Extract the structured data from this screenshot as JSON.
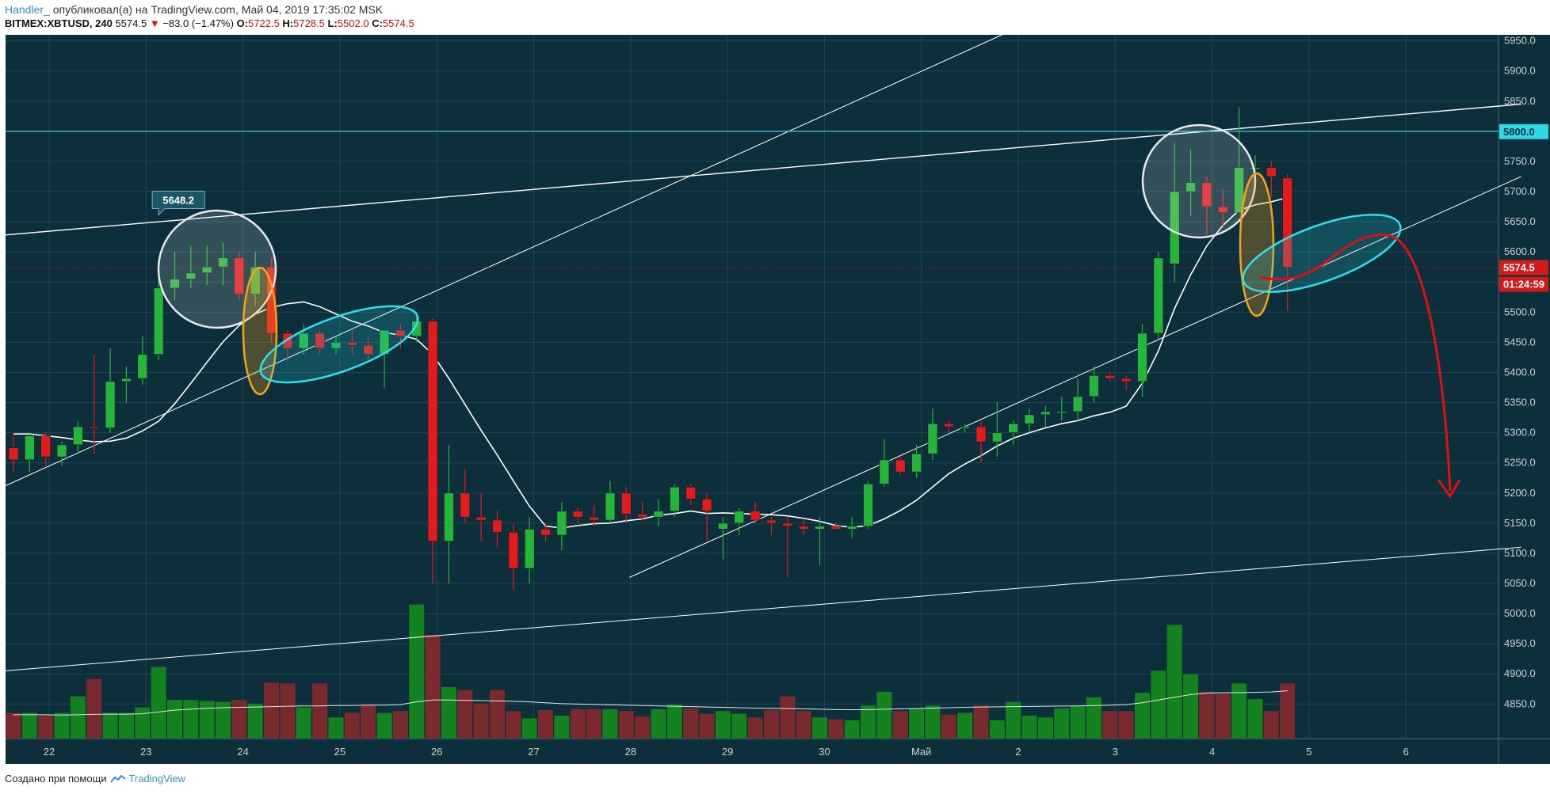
{
  "header": {
    "author": "Handler_",
    "published": "опубликовал(а) на TradingView.com, Май 04, 2019 17:35:02 MSK",
    "symbol": "BITMEX:XBTUSD, 240",
    "last": "5574.5",
    "change_arrow": "▼",
    "change": "−83.0 (−1.47%)",
    "o_label": "O:",
    "o_val": "5722.5",
    "h_label": "H:",
    "h_val": "5728.5",
    "l_label": "L:",
    "l_val": "5502.0",
    "c_label": "C:",
    "c_val": "5574.5"
  },
  "footer": {
    "created_with": "Создано при помощи",
    "brand": "TradingView",
    "brand_icon": "tradingview-logo-icon"
  },
  "colors": {
    "background": "#0d2f3b",
    "grid": "#1f4753",
    "up": "#27b43a",
    "down": "#e21c1c",
    "vol_up": "#13821f",
    "vol_down": "#7a2a2f",
    "ma": "#ffffff",
    "cyan": "#2ee0ee",
    "orange": "#f7a21b",
    "arrow": "#e01010",
    "resistance": "#3ad0d8"
  },
  "chart_data": {
    "type": "candlestick",
    "interval": "240",
    "y_axis": {
      "ticks": [
        "5950.0",
        "5900.0",
        "5850.0",
        "5800.0",
        "5750.0",
        "5700.0",
        "5650.0",
        "5600.0",
        "5550.0",
        "5500.0",
        "5450.0",
        "5400.0",
        "5350.0",
        "5300.0",
        "5250.0",
        "5200.0",
        "5150.0",
        "5100.0",
        "5050.0",
        "5000.0",
        "4950.0",
        "4900.0",
        "4850.0"
      ],
      "range": [
        4790,
        5960
      ]
    },
    "x_axis": {
      "ticks": [
        "22",
        "23",
        "24",
        "25",
        "26",
        "27",
        "28",
        "29",
        "30",
        "Май",
        "2",
        "3",
        "4",
        "5",
        "6"
      ]
    },
    "badges": {
      "resistance": {
        "label": "5800.0",
        "value": 5800
      },
      "last_price": {
        "label": "5574.5",
        "value": 5574.5
      },
      "countdown": "01:24:59",
      "high_callout": {
        "label": "5648.2",
        "value": 5648.2
      }
    },
    "candles": [
      [
        5275,
        5300,
        5235,
        5255
      ],
      [
        5255,
        5295,
        5235,
        5295
      ],
      [
        5295,
        5300,
        5245,
        5260
      ],
      [
        5260,
        5285,
        5245,
        5280
      ],
      [
        5280,
        5320,
        5265,
        5310
      ],
      [
        5310,
        5430,
        5265,
        5308
      ],
      [
        5308,
        5440,
        5300,
        5385
      ],
      [
        5385,
        5410,
        5350,
        5390
      ],
      [
        5390,
        5460,
        5380,
        5430
      ],
      [
        5430,
        5570,
        5420,
        5540
      ],
      [
        5540,
        5600,
        5520,
        5555
      ],
      [
        5555,
        5610,
        5540,
        5565
      ],
      [
        5565,
        5610,
        5545,
        5575
      ],
      [
        5575,
        5615,
        5545,
        5590
      ],
      [
        5590,
        5600,
        5520,
        5530
      ],
      [
        5530,
        5600,
        5510,
        5575
      ],
      [
        5575,
        5590,
        5450,
        5465
      ],
      [
        5465,
        5470,
        5420,
        5440
      ],
      [
        5440,
        5480,
        5430,
        5465
      ],
      [
        5465,
        5470,
        5430,
        5440
      ],
      [
        5440,
        5460,
        5430,
        5450
      ],
      [
        5450,
        5470,
        5430,
        5445
      ],
      [
        5445,
        5460,
        5420,
        5430
      ],
      [
        5430,
        5470,
        5375,
        5470
      ],
      [
        5470,
        5480,
        5440,
        5460
      ],
      [
        5460,
        5500,
        5450,
        5485
      ],
      [
        5485,
        5490,
        5050,
        5120
      ],
      [
        5120,
        5280,
        5050,
        5200
      ],
      [
        5200,
        5240,
        5150,
        5160
      ],
      [
        5160,
        5200,
        5120,
        5155
      ],
      [
        5155,
        5170,
        5110,
        5135
      ],
      [
        5135,
        5150,
        5040,
        5075
      ],
      [
        5075,
        5160,
        5050,
        5140
      ],
      [
        5140,
        5150,
        5120,
        5130
      ],
      [
        5130,
        5185,
        5105,
        5170
      ],
      [
        5170,
        5175,
        5150,
        5160
      ],
      [
        5160,
        5180,
        5145,
        5155
      ],
      [
        5155,
        5220,
        5150,
        5200
      ],
      [
        5200,
        5210,
        5150,
        5165
      ],
      [
        5165,
        5185,
        5155,
        5160
      ],
      [
        5160,
        5190,
        5145,
        5170
      ],
      [
        5170,
        5215,
        5160,
        5210
      ],
      [
        5210,
        5215,
        5180,
        5190
      ],
      [
        5190,
        5200,
        5120,
        5170
      ],
      [
        5140,
        5160,
        5090,
        5150
      ],
      [
        5150,
        5175,
        5130,
        5170
      ],
      [
        5170,
        5185,
        5150,
        5155
      ],
      [
        5155,
        5160,
        5130,
        5150
      ],
      [
        5150,
        5160,
        5060,
        5145
      ],
      [
        5145,
        5155,
        5130,
        5140
      ],
      [
        5140,
        5160,
        5080,
        5145
      ],
      [
        5145,
        5150,
        5140,
        5140
      ],
      [
        5140,
        5160,
        5125,
        5145
      ],
      [
        5145,
        5220,
        5140,
        5215
      ],
      [
        5215,
        5290,
        5210,
        5255
      ],
      [
        5255,
        5260,
        5230,
        5235
      ],
      [
        5235,
        5280,
        5225,
        5265
      ],
      [
        5265,
        5340,
        5255,
        5315
      ],
      [
        5315,
        5320,
        5300,
        5310
      ],
      [
        5310,
        5315,
        5300,
        5310
      ],
      [
        5310,
        5320,
        5250,
        5285
      ],
      [
        5285,
        5350,
        5260,
        5300
      ],
      [
        5300,
        5320,
        5280,
        5315
      ],
      [
        5315,
        5340,
        5300,
        5330
      ],
      [
        5330,
        5345,
        5310,
        5335
      ],
      [
        5335,
        5360,
        5320,
        5335
      ],
      [
        5335,
        5390,
        5320,
        5360
      ],
      [
        5360,
        5410,
        5350,
        5395
      ],
      [
        5395,
        5400,
        5385,
        5390
      ],
      [
        5390,
        5395,
        5370,
        5385
      ],
      [
        5385,
        5480,
        5360,
        5465
      ],
      [
        5465,
        5600,
        5455,
        5590
      ],
      [
        5580,
        5780,
        5550,
        5700
      ],
      [
        5700,
        5770,
        5660,
        5715
      ],
      [
        5715,
        5725,
        5625,
        5675
      ],
      [
        5675,
        5705,
        5640,
        5665
      ],
      [
        5665,
        5840,
        5665,
        5740
      ],
      [
        5740,
        5760,
        5700,
        5740
      ],
      [
        5740,
        5750,
        5690,
        5725
      ],
      [
        5722.5,
        5728.5,
        5502,
        5574.5
      ]
    ],
    "moving_average": [
      5298,
      5298,
      5295,
      5292,
      5288,
      5285,
      5286,
      5291,
      5303,
      5319,
      5348,
      5382,
      5417,
      5451,
      5478,
      5497,
      5508,
      5514,
      5517,
      5509,
      5497,
      5485,
      5477,
      5466,
      5462,
      5455,
      5430,
      5390,
      5347,
      5304,
      5263,
      5220,
      5178,
      5145,
      5142,
      5146,
      5149,
      5150,
      5154,
      5157,
      5163,
      5166,
      5170,
      5166,
      5167,
      5166,
      5165,
      5164,
      5162,
      5158,
      5153,
      5146,
      5143,
      5146,
      5157,
      5171,
      5188,
      5210,
      5232,
      5248,
      5262,
      5278,
      5291,
      5300,
      5308,
      5315,
      5320,
      5328,
      5334,
      5344,
      5382,
      5436,
      5506,
      5562,
      5610,
      5644,
      5669,
      5678,
      5683,
      5690
    ],
    "volume": [
      140,
      140,
      125,
      140,
      230,
      325,
      140,
      140,
      170,
      390,
      210,
      210,
      205,
      200,
      210,
      190,
      305,
      300,
      170,
      300,
      115,
      140,
      185,
      140,
      150,
      730,
      565,
      280,
      265,
      190,
      265,
      150,
      110,
      155,
      125,
      160,
      160,
      160,
      150,
      120,
      160,
      185,
      165,
      135,
      150,
      135,
      115,
      155,
      230,
      150,
      115,
      105,
      100,
      180,
      255,
      150,
      165,
      180,
      130,
      140,
      180,
      100,
      200,
      125,
      115,
      165,
      180,
      225,
      150,
      150,
      250,
      370,
      620,
      350,
      255,
      245,
      300,
      215,
      150,
      300
    ],
    "volume_ma": [
      130,
      130,
      130,
      128,
      130,
      132,
      133,
      133,
      135,
      145,
      155,
      160,
      165,
      168,
      170,
      172,
      174,
      176,
      178,
      178,
      180,
      180,
      182,
      182,
      185,
      200,
      210,
      210,
      208,
      207,
      205,
      203,
      200,
      195,
      190,
      188,
      186,
      184,
      182,
      180,
      178,
      176,
      174,
      172,
      170,
      168,
      166,
      165,
      164,
      162,
      160,
      158,
      157,
      158,
      160,
      162,
      164,
      166,
      168,
      170,
      172,
      173,
      174,
      175,
      176,
      177,
      178,
      180,
      182,
      185,
      195,
      210,
      225,
      240,
      248,
      250,
      250,
      252,
      254,
      260
    ],
    "annotations": {
      "arrow_label": "forecast-down-arrow"
    }
  }
}
